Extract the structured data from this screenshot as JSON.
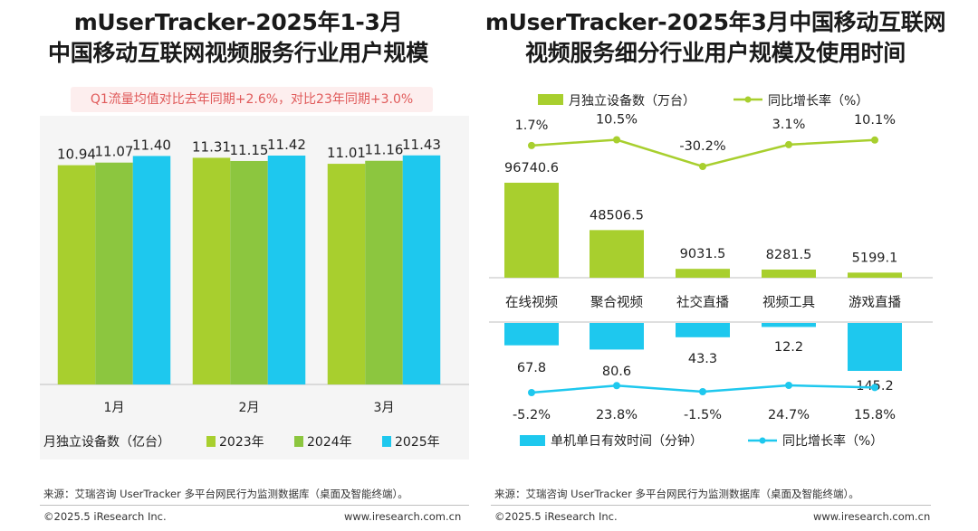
{
  "left": {
    "title_line1": "mUserTracker-2025年1-3月",
    "title_line2": "中国移动互联网视频服务行业用户规模",
    "note": "Q1流量均值对比去年同期+2.6%，对比23年同期+3.0%",
    "legend_title": "月独立设备数（亿台）"
  },
  "right": {
    "title_line1": "mUserTracker-2025年3月中国移动互联网",
    "title_line2": "视频服务细分行业用户规模及使用时间"
  },
  "footer": {
    "source": "来源：艾瑞咨询 UserTracker 多平台网民行为监测数据库（桌面及智能终端）。",
    "copyright": "©2025.5 iResearch Inc.",
    "url": "www.iresearch.com.cn"
  },
  "colors": {
    "c2023": "#a8cf2e",
    "c2024": "#8cc63f",
    "c2025": "#1ec8ee",
    "bar_top": "#a8cf2e",
    "line_top": "#a8cf2e",
    "bar_bottom": "#1ec8ee",
    "line_bottom": "#1ec8ee"
  },
  "chart_data": [
    {
      "type": "bar",
      "categories": [
        "1月",
        "2月",
        "3月"
      ],
      "series": [
        {
          "name": "2023年",
          "values": [
            10.94,
            11.31,
            11.01
          ]
        },
        {
          "name": "2024年",
          "values": [
            11.07,
            11.15,
            11.16
          ]
        },
        {
          "name": "2025年",
          "values": [
            11.4,
            11.42,
            11.43
          ]
        }
      ],
      "value_labels": [
        [
          "10.94",
          "11.07",
          "11.40"
        ],
        [
          "11.31",
          "11.15",
          "11.42"
        ],
        [
          "11.01",
          "11.16",
          "11.43"
        ]
      ],
      "ylabel": "月独立设备数（亿台）",
      "legend_position": "bottom",
      "grid": false
    },
    {
      "type": "bar",
      "categories": [
        "在线视频",
        "聚合视频",
        "社交直播",
        "视频工具",
        "游戏直播"
      ],
      "top": {
        "bar_series": {
          "name": "月独立设备数（万台）",
          "values": [
            96740.6,
            48506.5,
            9031.5,
            8281.5,
            5199.1
          ],
          "labels": [
            "96740.6",
            "48506.5",
            "9031.5",
            "8281.5",
            "5199.1"
          ]
        },
        "line_series": {
          "name": "同比增长率（%）",
          "values": [
            1.7,
            10.5,
            -30.2,
            3.1,
            10.1
          ],
          "labels": [
            "1.7%",
            "10.5%",
            "-30.2%",
            "3.1%",
            "10.1%"
          ]
        }
      },
      "bottom": {
        "bar_series": {
          "name": "单机单日有效时间（分钟）",
          "values": [
            67.8,
            80.6,
            43.3,
            12.2,
            145.2
          ],
          "labels": [
            "67.8",
            "80.6",
            "43.3",
            "12.2",
            "145.2"
          ]
        },
        "line_series": {
          "name": "同比增长率（%）",
          "values": [
            -5.2,
            23.8,
            -1.5,
            24.7,
            15.8
          ],
          "labels": [
            "-5.2%",
            "23.8%",
            "-1.5%",
            "24.7%",
            "15.8%"
          ]
        }
      },
      "legend_position": "top and bottom",
      "grid": false
    }
  ]
}
